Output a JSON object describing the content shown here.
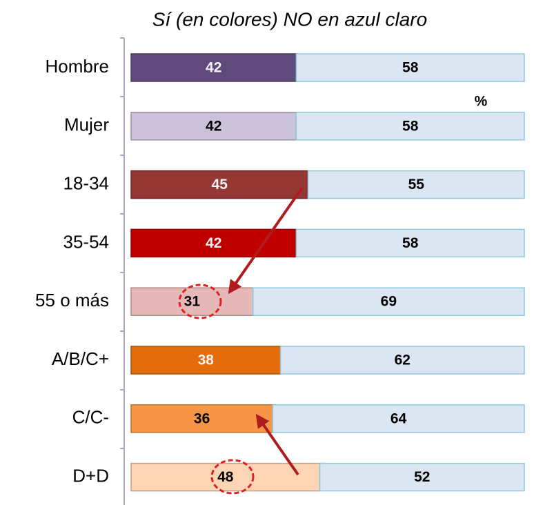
{
  "chart_data": {
    "type": "stacked_bar_horizontal",
    "title": "Sí (en colores) NO en azul claro",
    "annotations": [
      "%"
    ],
    "categories": [
      "Hombre",
      "Mujer",
      "18-34",
      "35-54",
      "55 o más",
      "A/B/C+",
      "C/C-",
      "D+D"
    ],
    "series": [
      {
        "colors": [
          "#604a7b",
          "#ccc1da",
          "#953735",
          "#c00000",
          "#e6b9b8",
          "#e46c0a",
          "#f79646",
          "#fcd5b5"
        ],
        "values": [
          42,
          42,
          45,
          42,
          31,
          38,
          36,
          48
        ]
      },
      {
        "color": "#dce6f2",
        "values": [
          58,
          58,
          55,
          58,
          69,
          62,
          64,
          52
        ]
      }
    ],
    "xlim": [
      0,
      100
    ]
  }
}
